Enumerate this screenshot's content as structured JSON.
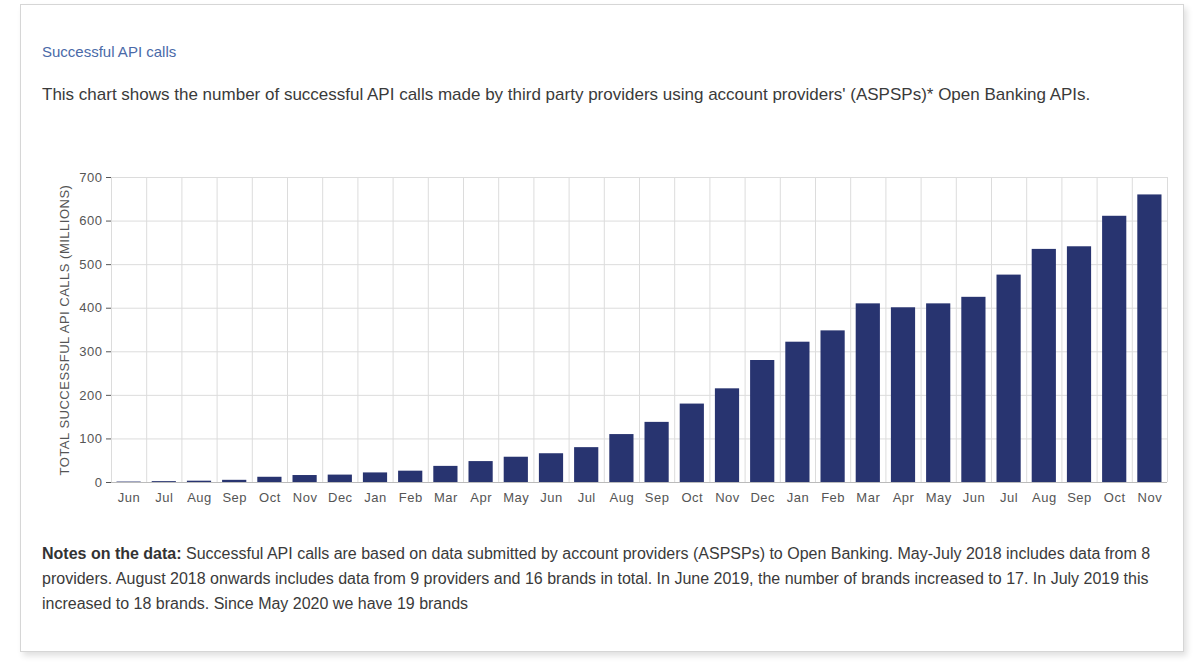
{
  "chart_data": {
    "type": "bar",
    "title": "Successful API calls",
    "subtitle": "This chart shows the number of successful API calls made by third party providers using account providers' (ASPSPs)* Open Banking APIs.",
    "y_label": "TOTAL SUCCESSFUL API CALLS (MILLIONS)",
    "categories": [
      "Jun",
      "Jul",
      "Aug",
      "Sep",
      "Oct",
      "Nov",
      "Dec",
      "Jan",
      "Feb",
      "Mar",
      "Apr",
      "May",
      "Jun",
      "Jul",
      "Aug",
      "Sep",
      "Oct",
      "Nov",
      "Dec",
      "Jan",
      "Feb",
      "Mar",
      "Apr",
      "May",
      "Jun",
      "Jul",
      "Aug",
      "Sep",
      "Oct",
      "Nov"
    ],
    "values": [
      1,
      2,
      3,
      5,
      12,
      16,
      17,
      22,
      26,
      37,
      48,
      58,
      66,
      80,
      110,
      138,
      180,
      215,
      280,
      322,
      348,
      410,
      401,
      410,
      425,
      476,
      535,
      541,
      611,
      660
    ],
    "color": "#283470",
    "ylim": [
      0,
      700
    ],
    "yticks": [
      0,
      100,
      200,
      300,
      400,
      500,
      600,
      700
    ],
    "grid": true,
    "notes_title": "Notes on the data:",
    "notes": "Successful API calls are based on data submitted by account providers (ASPSPs) to Open Banking. May-July 2018 includes data from 8 providers. August 2018 onwards includes data from 9 providers and 16 brands in total. In June 2019, the number of brands increased to 17. In July 2019 this increased to 18 brands. Since May 2020 we have 19 brands"
  }
}
